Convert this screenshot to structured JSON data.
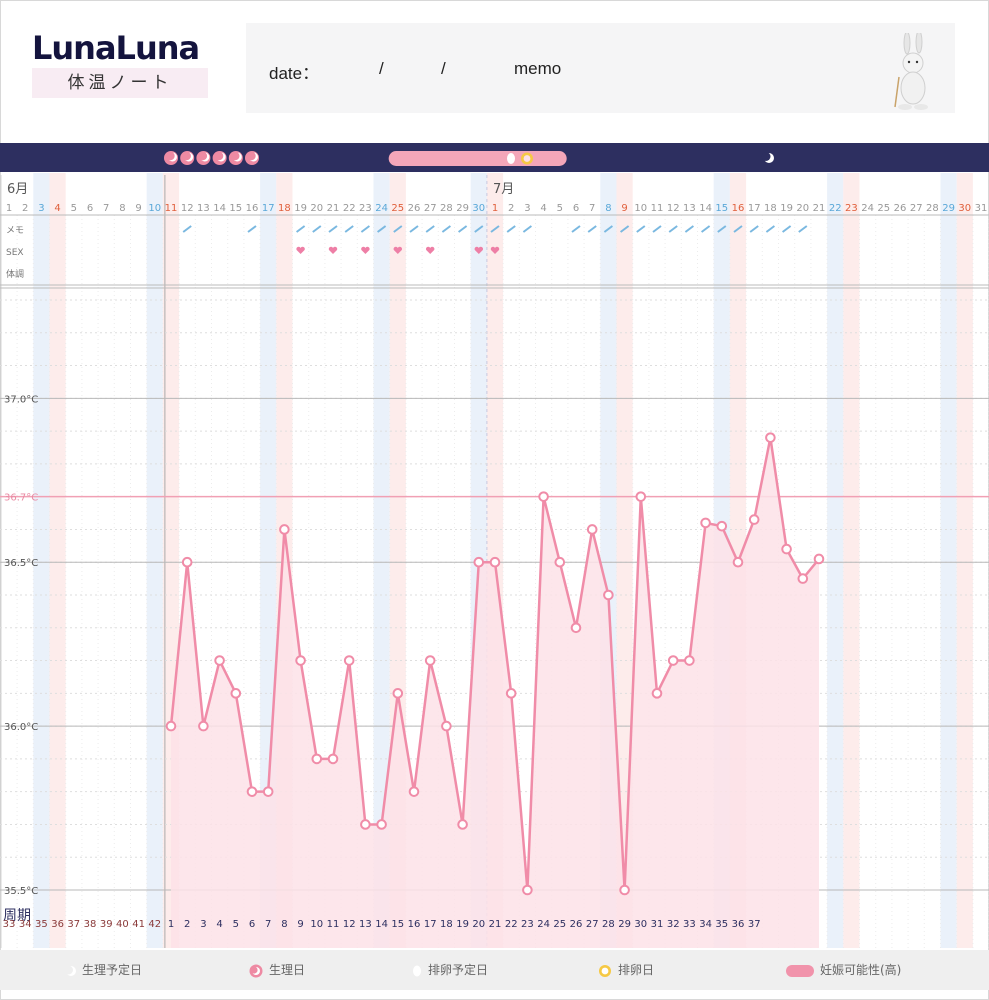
{
  "header": {
    "logo_title": "LunaLuna",
    "logo_subtitle": "体温ノート",
    "date_label": "date：",
    "date_sep1": "/",
    "date_sep2": "/",
    "memo_label": "memo"
  },
  "legend": {
    "predicted_period": "生理予定日",
    "period_day": "生理日",
    "predicted_ovulation": "排卵予定日",
    "ovulation_day": "排卵日",
    "fertility_high": "妊娠可能性(高)"
  },
  "colors": {
    "topbar": "#2d2f60",
    "line": "#f08ca8",
    "fill": "#fde2e8",
    "saturday": "#5aa8d8",
    "sunday": "#e0603c",
    "threshold": "#f1a0b4",
    "grid": "#b8b8b8"
  },
  "chart_data": {
    "type": "line",
    "row_labels": [
      "メモ",
      "SEX",
      "体調"
    ],
    "cycle_label": "周期",
    "month_labels": [
      {
        "label": "6月",
        "day_index": 0
      },
      {
        "label": "7月",
        "day_index": 30
      }
    ],
    "days": [
      1,
      2,
      3,
      4,
      5,
      6,
      7,
      8,
      9,
      10,
      11,
      12,
      13,
      14,
      15,
      16,
      17,
      18,
      19,
      20,
      21,
      22,
      23,
      24,
      25,
      26,
      27,
      28,
      29,
      30,
      1,
      2,
      3,
      4,
      5,
      6,
      7,
      8,
      9,
      10,
      11,
      12,
      13,
      14,
      15,
      16,
      17,
      18,
      19,
      20,
      21,
      22,
      23,
      24,
      25,
      26,
      27,
      28,
      29,
      30,
      31
    ],
    "day_colors": [
      "n",
      "n",
      "sat",
      "sun",
      "n",
      "n",
      "n",
      "n",
      "n",
      "sat",
      "sun",
      "n",
      "n",
      "n",
      "n",
      "n",
      "sat",
      "sun",
      "n",
      "n",
      "n",
      "n",
      "n",
      "sat",
      "sun",
      "n",
      "n",
      "n",
      "n",
      "sat",
      "sun",
      "n",
      "n",
      "n",
      "n",
      "n",
      "n",
      "sat",
      "sun",
      "n",
      "n",
      "n",
      "n",
      "n",
      "sat",
      "sun",
      "n",
      "n",
      "n",
      "n",
      "n",
      "sat",
      "sun",
      "n",
      "n",
      "n",
      "n",
      "n",
      "sat",
      "sun",
      "n"
    ],
    "cycle_days": [
      "33",
      "34",
      "35",
      "36",
      "37",
      "38",
      "39",
      "40",
      "41",
      "42",
      "1",
      "2",
      "3",
      "4",
      "5",
      "6",
      "7",
      "8",
      "9",
      "10",
      "11",
      "12",
      "13",
      "14",
      "15",
      "16",
      "17",
      "18",
      "19",
      "20",
      "21",
      "22",
      "23",
      "24",
      "25",
      "26",
      "27",
      "28",
      "29",
      "30",
      "31",
      "32",
      "33",
      "34",
      "35",
      "36",
      "37",
      "",
      "",
      "",
      "",
      "",
      "",
      "",
      "",
      "",
      "",
      "",
      "",
      "",
      ""
    ],
    "y_ticks": [
      {
        "value": 35.5,
        "label": "35.5°C"
      },
      {
        "value": 36.0,
        "label": "36.0°C"
      },
      {
        "value": 36.5,
        "label": "36.5°C"
      },
      {
        "value": 37.0,
        "label": "37.0°C"
      }
    ],
    "threshold": {
      "value": 36.7,
      "label": "36.7°C"
    },
    "ylim": [
      35.5,
      37.3
    ],
    "series": [
      {
        "start_day_index": 10,
        "values": [
          36.0,
          36.5,
          36.0,
          36.2,
          36.1,
          35.8,
          35.8,
          36.6,
          36.2,
          35.9,
          35.9,
          36.2,
          35.7,
          35.7,
          36.1,
          35.8,
          36.2,
          36.0,
          35.7,
          36.5,
          36.5,
          36.1,
          35.5,
          36.7,
          36.5,
          36.3,
          36.6,
          36.4,
          35.5,
          36.7,
          36.1,
          36.2,
          36.2,
          36.62,
          36.61,
          36.5,
          36.63,
          36.88,
          36.54,
          36.45,
          36.51
        ]
      }
    ],
    "memo_marks": [
      11,
      15,
      18,
      19,
      20,
      21,
      22,
      23,
      24,
      25,
      26,
      27,
      28,
      29,
      30,
      31,
      32,
      35,
      36,
      37,
      38,
      39,
      40,
      41,
      42,
      43,
      44,
      45,
      46,
      47,
      48,
      49
    ],
    "sex_marks": [
      18,
      20,
      22,
      24,
      26,
      29,
      30
    ],
    "period_icons": 6,
    "fertile_band": {
      "from": 0.3,
      "to": 0.58
    }
  }
}
